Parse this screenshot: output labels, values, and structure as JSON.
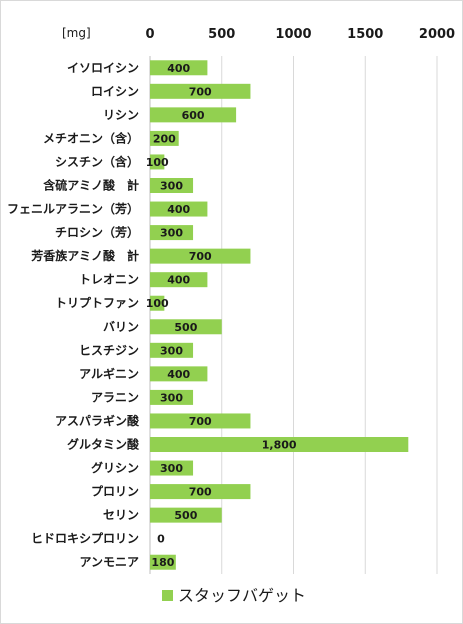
{
  "chart_data": {
    "type": "bar",
    "orientation": "horizontal",
    "unit_label": "[mg]",
    "xlim": [
      0,
      2000
    ],
    "ticks": [
      "0",
      "500",
      "1000",
      "1500",
      "2000"
    ],
    "grid": true,
    "legend_position": "bottom",
    "categories": [
      "イソロイシン",
      "ロイシン",
      "リシン",
      "メチオニン（含）",
      "シスチン（含）",
      "含硫アミノ酸　計",
      "フェニルアラニン（芳）",
      "チロシン（芳）",
      "芳香族アミノ酸　計",
      "トレオニン",
      "トリプトファン",
      "バリン",
      "ヒスチジン",
      "アルギニン",
      "アラニン",
      "アスパラギン酸",
      "グルタミン酸",
      "グリシン",
      "プロリン",
      "セリン",
      "ヒドロキシプロリン",
      "アンモニア"
    ],
    "series": [
      {
        "name": "スタッフバゲット",
        "color": "#92d050",
        "values": [
          400,
          700,
          600,
          200,
          100,
          300,
          400,
          300,
          700,
          400,
          100,
          500,
          300,
          400,
          300,
          700,
          1800,
          300,
          700,
          500,
          0,
          180
        ],
        "labels": [
          "400",
          "700",
          "600",
          "200",
          "100",
          "300",
          "400",
          "300",
          "700",
          "400",
          "100",
          "500",
          "300",
          "400",
          "300",
          "700",
          "1,800",
          "300",
          "700",
          "500",
          "0",
          "180"
        ]
      }
    ]
  }
}
